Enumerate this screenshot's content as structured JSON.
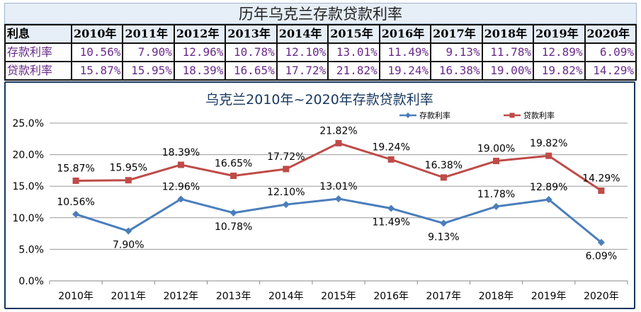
{
  "table": {
    "title": "历年乌克兰存款贷款利率",
    "corner": "利息",
    "years": [
      "2010年",
      "2011年",
      "2012年",
      "2013年",
      "2014年",
      "2015年",
      "2016年",
      "2017年",
      "2018年",
      "2019年",
      "2020年"
    ],
    "rows": [
      {
        "label": "存款利率",
        "values": [
          "10.56%",
          "7.90%",
          "12.96%",
          "10.78%",
          "12.10%",
          "13.01%",
          "11.49%",
          "9.13%",
          "11.78%",
          "12.89%",
          "6.09%"
        ]
      },
      {
        "label": "贷款利率",
        "values": [
          "15.87%",
          "15.95%",
          "18.39%",
          "16.65%",
          "17.72%",
          "21.82%",
          "19.24%",
          "16.38%",
          "19.00%",
          "19.82%",
          "14.29%"
        ]
      }
    ]
  },
  "chart_data": {
    "type": "line",
    "title": "乌克兰2010年~2020年存款贷款利率",
    "categories": [
      "2010年",
      "2011年",
      "2012年",
      "2013年",
      "2014年",
      "2015年",
      "2016年",
      "2017年",
      "2018年",
      "2019年",
      "2020年"
    ],
    "y_ticks": [
      "0.0%",
      "5.0%",
      "10.0%",
      "15.0%",
      "20.0%",
      "25.0%"
    ],
    "ylim": [
      0,
      25
    ],
    "grid": true,
    "legend_position": "top-right",
    "series": [
      {
        "name": "存款利率",
        "color": "#4a7ebb",
        "marker": "diamond",
        "values": [
          10.56,
          7.9,
          12.96,
          10.78,
          12.1,
          13.01,
          11.49,
          9.13,
          11.78,
          12.89,
          6.09
        ],
        "labels": [
          "10.56%",
          "7.90%",
          "12.96%",
          "10.78%",
          "12.10%",
          "13.01%",
          "11.49%",
          "9.13%",
          "11.78%",
          "12.89%",
          "6.09%"
        ]
      },
      {
        "name": "贷款利率",
        "color": "#be4b48",
        "marker": "square",
        "values": [
          15.87,
          15.95,
          18.39,
          16.65,
          17.72,
          21.82,
          19.24,
          16.38,
          19.0,
          19.82,
          14.29
        ],
        "labels": [
          "15.87%",
          "15.95%",
          "18.39%",
          "16.65%",
          "17.72%",
          "21.82%",
          "19.24%",
          "16.38%",
          "19.00%",
          "19.82%",
          "14.29%"
        ]
      }
    ]
  }
}
